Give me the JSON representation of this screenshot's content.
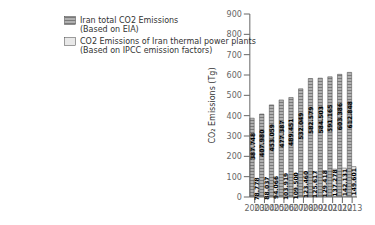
{
  "chart_data": {
    "type": "bar",
    "ylabel": "CO₂ Emissions (Tg)",
    "categories": [
      "2003",
      "2004",
      "2005",
      "2006",
      "2007",
      "2008",
      "2009",
      "2010",
      "2011",
      "2012",
      "2013"
    ],
    "series": [
      {
        "name": "Iran total CO2 Emissions\n(Based on EIA)",
        "color": "#b0b0b0",
        "values": [
          387.748,
          407.98,
          453.059,
          477.387,
          489.451,
          532.049,
          582.579,
          584.503,
          591.165,
          603.386,
          612.848
        ],
        "value_labels": [
          "387.748",
          "407.980",
          "453.059",
          "477.387",
          "489.451",
          "532.049",
          "582.579",
          "584.503",
          "591.165",
          "603.386",
          "612.848"
        ]
      },
      {
        "name": "CO2 Emissions of Iran thermal power plants\n(Based on IPCC emission factors)",
        "color": "#e8e8e8",
        "values": [
          78.778,
          88.037,
          94.066,
          103.919,
          109.5,
          123.46,
          125.617,
          129.418,
          137.278,
          142.131,
          149.601
        ],
        "value_labels": [
          "78.778",
          "88.037",
          "94.066",
          "103.919",
          "109.500",
          "123.460",
          "125.617",
          "129.418",
          "137.278",
          "142.131",
          "149.601"
        ]
      }
    ],
    "ylim": [
      0,
      900
    ],
    "yticks": [
      0,
      100,
      200,
      300,
      400,
      500,
      600,
      700,
      800,
      900
    ],
    "legend": "upper left",
    "data_labels": true,
    "grid": false,
    "stacked": false
  }
}
